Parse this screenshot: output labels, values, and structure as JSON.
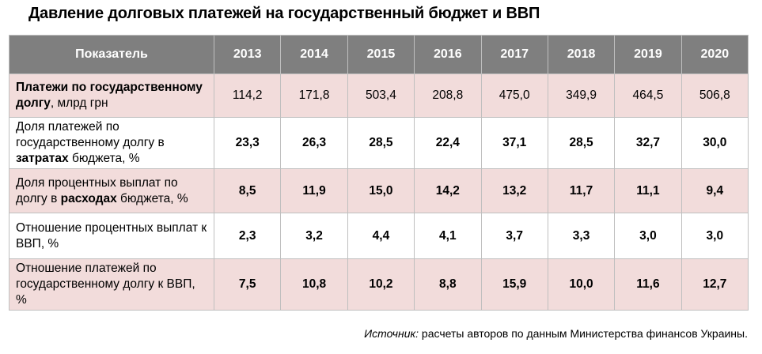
{
  "title": "Давление долговых платежей на государственный бюджет и ВВП",
  "table": {
    "header_label": "Показатель",
    "years": [
      "2013",
      "2014",
      "2015",
      "2016",
      "2017",
      "2018",
      "2019",
      "2020"
    ],
    "rows": [
      {
        "label_parts": [
          {
            "text": "Платежи по государственному долгу",
            "bold": true
          },
          {
            "text": ", млрд грн",
            "bold": false
          }
        ],
        "values": [
          "114,2",
          "171,8",
          "503,4",
          "208,8",
          "475,0",
          "349,9",
          "464,5",
          "506,8"
        ],
        "values_bold": false
      },
      {
        "label_parts": [
          {
            "text": "Доля платежей по государственному долгу в ",
            "bold": false
          },
          {
            "text": "затратах",
            "bold": true
          },
          {
            "text": " бюджета, %",
            "bold": false
          }
        ],
        "values": [
          "23,3",
          "26,3",
          "28,5",
          "22,4",
          "37,1",
          "28,5",
          "32,7",
          "30,0"
        ],
        "values_bold": true
      },
      {
        "label_parts": [
          {
            "text": "Доля процентных выплат по долгу в ",
            "bold": false
          },
          {
            "text": "расходах",
            "bold": true
          },
          {
            "text": " бюджета, %",
            "bold": false
          }
        ],
        "values": [
          "8,5",
          "11,9",
          "15,0",
          "14,2",
          "13,2",
          "11,7",
          "11,1",
          "9,4"
        ],
        "values_bold": true
      },
      {
        "label_parts": [
          {
            "text": "Отношение процентных выплат к ВВП, %",
            "bold": false
          }
        ],
        "values": [
          "2,3",
          "3,2",
          "4,4",
          "4,1",
          "3,7",
          "3,3",
          "3,0",
          "3,0"
        ],
        "values_bold": true
      },
      {
        "label_parts": [
          {
            "text": "Отношение платежей по государственному долгу к ВВП, %",
            "bold": false
          }
        ],
        "values": [
          "7,5",
          "10,8",
          "10,2",
          "8,8",
          "15,9",
          "10,0",
          "11,6",
          "12,7"
        ],
        "values_bold": true
      }
    ]
  },
  "source": {
    "label": "Источник:",
    "text": " расчеты авторов по данным Министерства финансов Украины."
  }
}
